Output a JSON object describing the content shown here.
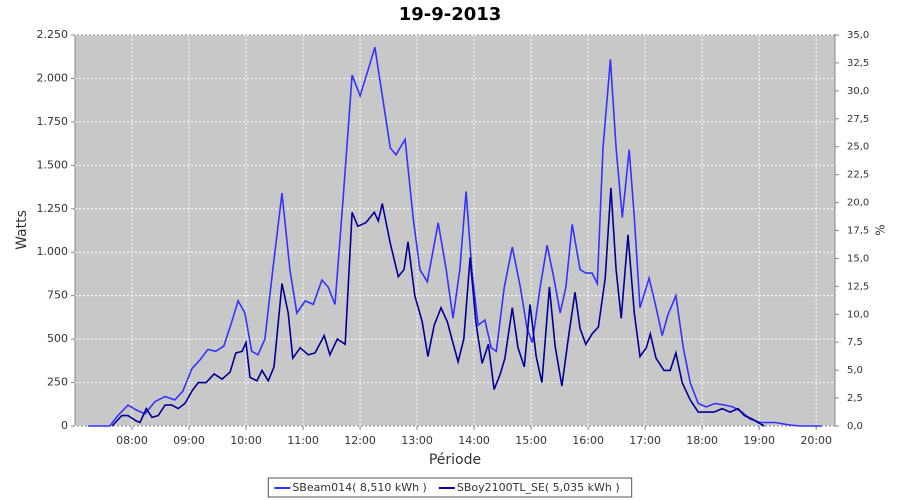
{
  "chart_data": {
    "type": "line",
    "title": "19-9-2013",
    "x_label": "Période",
    "y_label": "Watts",
    "y2_label": "%",
    "xlim": [
      7,
      20.33
    ],
    "xticks": [
      {
        "value": 8,
        "label": "08:00"
      },
      {
        "value": 9,
        "label": "09:00"
      },
      {
        "value": 10,
        "label": "10:00"
      },
      {
        "value": 11,
        "label": "11:00"
      },
      {
        "value": 12,
        "label": "12:00"
      },
      {
        "value": 13,
        "label": "13:00"
      },
      {
        "value": 14,
        "label": "14:00"
      },
      {
        "value": 15,
        "label": "15:00"
      },
      {
        "value": 16,
        "label": "16:00"
      },
      {
        "value": 17,
        "label": "17:00"
      },
      {
        "value": 18,
        "label": "18:00"
      },
      {
        "value": 19,
        "label": "19:00"
      },
      {
        "value": 20,
        "label": "20:00"
      }
    ],
    "ylim": [
      0,
      2250
    ],
    "yticks": [
      0,
      250,
      500,
      750,
      {
        "value": 1000,
        "label": "1.000"
      },
      {
        "value": 1250,
        "label": "1.250"
      },
      {
        "value": 1500,
        "label": "1.500"
      },
      {
        "value": 1750,
        "label": "1.750"
      },
      {
        "value": 2000,
        "label": "2.000"
      },
      {
        "value": 2250,
        "label": "2.250"
      }
    ],
    "y2lim": [
      0,
      35
    ],
    "y2ticks": [
      {
        "value": 0,
        "label": "0,0"
      },
      {
        "value": 2.5,
        "label": "2,5"
      },
      {
        "value": 5,
        "label": "5,0"
      },
      {
        "value": 7.5,
        "label": "7,5"
      },
      {
        "value": 10,
        "label": "10,0"
      },
      {
        "value": 12.5,
        "label": "12,5"
      },
      {
        "value": 15,
        "label": "15,0"
      },
      {
        "value": 17.5,
        "label": "17,5"
      },
      {
        "value": 20,
        "label": "20,0"
      },
      {
        "value": 22.5,
        "label": "22,5"
      },
      {
        "value": 25,
        "label": "25,0"
      },
      {
        "value": 27.5,
        "label": "27,5"
      },
      {
        "value": 30,
        "label": "30,0"
      },
      {
        "value": 32.5,
        "label": "32,5"
      },
      {
        "value": 35,
        "label": "35,0"
      }
    ],
    "grid": true,
    "series": [
      {
        "name": "SBeam014( 8,510 kWh )",
        "color": "#3333ff",
        "x": [
          7.23,
          7.61,
          7.75,
          7.93,
          8.09,
          8.23,
          8.4,
          8.58,
          8.75,
          8.89,
          9.05,
          9.19,
          9.33,
          9.47,
          9.61,
          9.75,
          9.86,
          9.98,
          10.1,
          10.21,
          10.33,
          10.47,
          10.63,
          10.77,
          10.89,
          11.04,
          11.18,
          11.33,
          11.44,
          11.56,
          11.7,
          11.86,
          12.0,
          12.14,
          12.26,
          12.39,
          12.53,
          12.63,
          12.79,
          12.93,
          13.05,
          13.18,
          13.37,
          13.51,
          13.63,
          13.75,
          13.86,
          13.96,
          14.07,
          14.19,
          14.3,
          14.39,
          14.53,
          14.67,
          14.81,
          14.93,
          15.02,
          15.16,
          15.28,
          15.4,
          15.51,
          15.61,
          15.72,
          15.86,
          15.96,
          16.07,
          16.16,
          16.26,
          16.39,
          16.49,
          16.6,
          16.72,
          16.81,
          16.91,
          17.07,
          17.18,
          17.3,
          17.4,
          17.54,
          17.67,
          17.79,
          17.93,
          18.07,
          18.23,
          18.4,
          18.54,
          18.7,
          18.84,
          19.02,
          19.28,
          19.54,
          19.72,
          20.1
        ],
        "values": [
          0,
          0,
          60,
          120,
          90,
          70,
          140,
          170,
          150,
          200,
          330,
          380,
          440,
          430,
          460,
          600,
          720,
          650,
          430,
          410,
          500,
          900,
          1340,
          900,
          650,
          720,
          700,
          840,
          800,
          700,
          1300,
          2020,
          1900,
          2050,
          2180,
          1900,
          1600,
          1560,
          1650,
          1200,
          900,
          830,
          1170,
          900,
          620,
          900,
          1350,
          900,
          580,
          610,
          450,
          430,
          800,
          1030,
          800,
          560,
          480,
          800,
          1040,
          850,
          650,
          800,
          1160,
          900,
          880,
          880,
          820,
          1600,
          2110,
          1600,
          1200,
          1590,
          1200,
          680,
          850,
          700,
          520,
          640,
          750,
          450,
          250,
          130,
          110,
          130,
          120,
          110,
          80,
          40,
          20,
          20,
          5,
          0,
          0
        ]
      },
      {
        "name": "SBoy2100TL_SE( 5,035 kWh )",
        "color": "#000099",
        "x": [
          7.65,
          7.82,
          7.93,
          8.07,
          8.14,
          8.25,
          8.35,
          8.46,
          8.58,
          8.7,
          8.81,
          8.93,
          9.05,
          9.16,
          9.3,
          9.44,
          9.58,
          9.72,
          9.82,
          9.93,
          10.0,
          10.07,
          10.19,
          10.28,
          10.39,
          10.49,
          10.63,
          10.74,
          10.82,
          10.95,
          11.09,
          11.21,
          11.37,
          11.47,
          11.6,
          11.74,
          11.86,
          11.96,
          12.1,
          12.25,
          12.32,
          12.39,
          12.53,
          12.67,
          12.77,
          12.84,
          12.96,
          13.09,
          13.19,
          13.3,
          13.42,
          13.53,
          13.61,
          13.72,
          13.82,
          13.93,
          14.03,
          14.14,
          14.25,
          14.35,
          14.46,
          14.54,
          14.67,
          14.77,
          14.88,
          14.98,
          15.09,
          15.19,
          15.32,
          15.42,
          15.54,
          15.65,
          15.77,
          15.86,
          15.96,
          16.07,
          16.18,
          16.3,
          16.4,
          16.49,
          16.58,
          16.7,
          16.81,
          16.91,
          17.02,
          17.09,
          17.19,
          17.33,
          17.44,
          17.54,
          17.65,
          17.79,
          17.93,
          18.07,
          18.21,
          18.35,
          18.49,
          18.63,
          18.74,
          18.88,
          18.98,
          19.09
        ],
        "values": [
          0,
          60,
          60,
          30,
          20,
          100,
          50,
          60,
          120,
          120,
          100,
          130,
          200,
          250,
          250,
          300,
          270,
          310,
          420,
          430,
          480,
          280,
          260,
          320,
          260,
          340,
          820,
          650,
          390,
          450,
          410,
          420,
          520,
          410,
          500,
          470,
          1230,
          1150,
          1170,
          1230,
          1180,
          1280,
          1050,
          860,
          900,
          1060,
          750,
          600,
          400,
          580,
          680,
          600,
          500,
          370,
          500,
          970,
          600,
          360,
          470,
          210,
          300,
          390,
          680,
          450,
          340,
          700,
          400,
          250,
          800,
          460,
          230,
          500,
          770,
          560,
          470,
          530,
          570,
          850,
          1370,
          900,
          620,
          1100,
          650,
          400,
          450,
          530,
          390,
          320,
          320,
          420,
          250,
          150,
          80,
          80,
          80,
          100,
          80,
          100,
          60,
          40,
          20,
          0
        ]
      }
    ]
  }
}
